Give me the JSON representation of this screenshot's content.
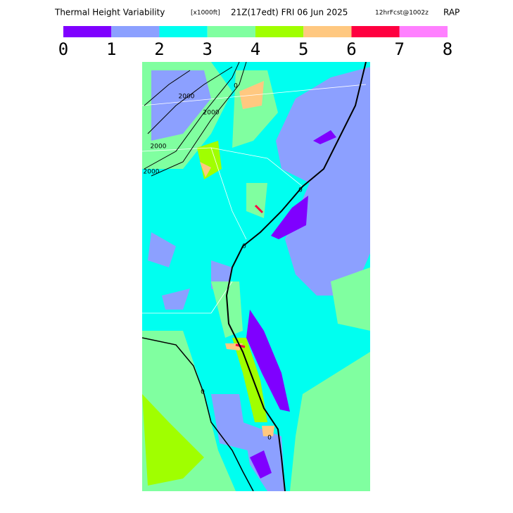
{
  "header": {
    "title": "Thermal Height Variability",
    "units": "[x1000ft]",
    "valid_time": "21Z(17edt) FRI 06 Jun 2025",
    "forecast": "12hrFcst@1002z",
    "model": "RAP"
  },
  "colorbar": {
    "colors": [
      "#7f00ff",
      "#8ca0ff",
      "#00fff0",
      "#80ffa0",
      "#a0ff00",
      "#ffc880",
      "#ff0040",
      "#ff80ff"
    ],
    "ticks": [
      0,
      1,
      2,
      3,
      4,
      5,
      6,
      7,
      8
    ]
  },
  "contour_labels": [
    "2000",
    "2000",
    "2000",
    "2000",
    "0",
    "0",
    "0",
    "0",
    "0"
  ]
}
